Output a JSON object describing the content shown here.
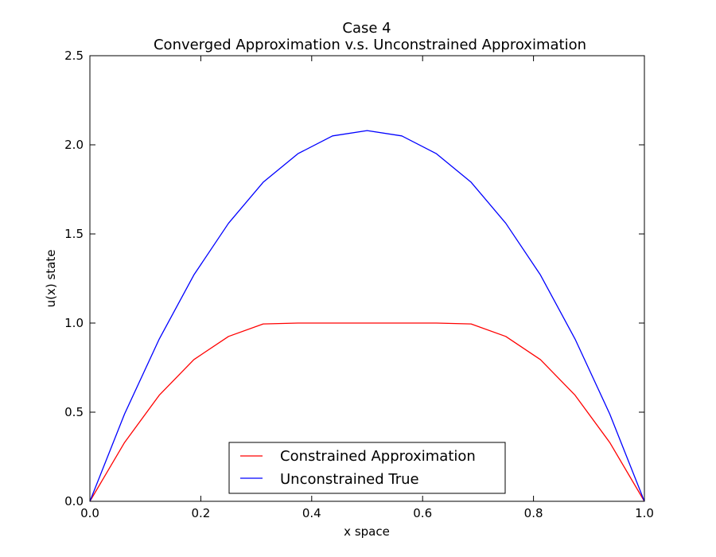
{
  "chart_data": {
    "type": "line",
    "title": "Case 4",
    "subtitle": "Converged Approximation v.s. Unconstrained Approximation",
    "xlabel": "x space",
    "ylabel": "u(x) state",
    "xlim": [
      0.0,
      1.0
    ],
    "ylim": [
      0.0,
      2.5
    ],
    "xticks": [
      "0.0",
      "0.2",
      "0.4",
      "0.6",
      "0.8",
      "1.0"
    ],
    "yticks": [
      "0.0",
      "0.5",
      "1.0",
      "1.5",
      "2.0",
      "2.5"
    ],
    "grid": false,
    "legend_position": "bottom-center",
    "x": [
      0.0,
      0.0625,
      0.125,
      0.1875,
      0.25,
      0.3125,
      0.375,
      0.4375,
      0.5,
      0.5625,
      0.625,
      0.6875,
      0.75,
      0.8125,
      0.875,
      0.9375,
      1.0
    ],
    "series": [
      {
        "name": "Constrained Approximation",
        "color": "#ff0000",
        "values": [
          0.0,
          0.33,
          0.595,
          0.795,
          0.925,
          0.995,
          1.0,
          1.0,
          1.0,
          1.0,
          1.0,
          0.995,
          0.925,
          0.795,
          0.595,
          0.33,
          0.0
        ]
      },
      {
        "name": "Unconstrained True",
        "color": "#0000ff",
        "values": [
          0.0,
          0.49,
          0.91,
          1.27,
          1.56,
          1.79,
          1.95,
          2.05,
          2.08,
          2.05,
          1.95,
          1.79,
          1.56,
          1.27,
          0.91,
          0.49,
          0.0
        ]
      }
    ]
  }
}
